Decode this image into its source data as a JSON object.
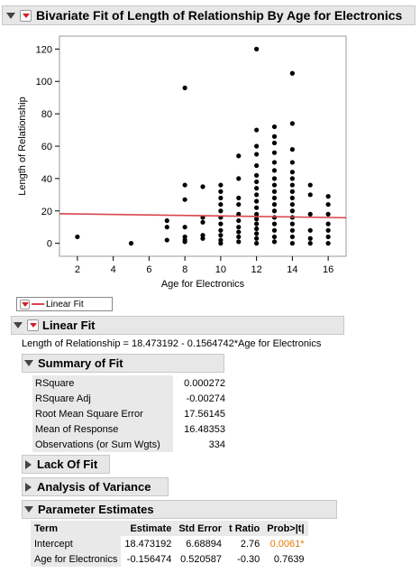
{
  "report": {
    "title": "Bivariate Fit of Length of Relationship By Age for Electronics"
  },
  "chart_data": {
    "type": "scatter",
    "xlabel": "Age for Electronics",
    "ylabel": "Length of Relationship",
    "xlim": [
      1,
      17
    ],
    "ylim": [
      -8,
      128
    ],
    "xticks": [
      2,
      4,
      6,
      8,
      10,
      12,
      14,
      16
    ],
    "yticks": [
      0,
      20,
      40,
      60,
      80,
      100,
      120
    ],
    "fit_line": {
      "intercept": 18.473192,
      "slope": -0.1564742,
      "color": "#d9454f"
    },
    "point_color": "#000000",
    "points": [
      [
        2,
        4
      ],
      [
        5,
        0
      ],
      [
        7,
        14
      ],
      [
        7,
        10
      ],
      [
        7,
        2
      ],
      [
        8,
        96
      ],
      [
        8,
        36
      ],
      [
        8,
        27
      ],
      [
        8,
        10
      ],
      [
        8,
        4
      ],
      [
        8,
        2
      ],
      [
        8,
        1
      ],
      [
        9,
        35
      ],
      [
        9,
        16
      ],
      [
        9,
        13
      ],
      [
        9,
        5
      ],
      [
        9,
        3
      ],
      [
        10,
        36
      ],
      [
        10,
        32
      ],
      [
        10,
        28
      ],
      [
        10,
        24
      ],
      [
        10,
        20
      ],
      [
        10,
        16
      ],
      [
        10,
        12
      ],
      [
        10,
        8
      ],
      [
        10,
        5
      ],
      [
        10,
        2
      ],
      [
        10,
        0
      ],
      [
        11,
        54
      ],
      [
        11,
        40
      ],
      [
        11,
        28
      ],
      [
        11,
        24
      ],
      [
        11,
        18
      ],
      [
        11,
        14
      ],
      [
        11,
        10
      ],
      [
        11,
        7
      ],
      [
        11,
        4
      ],
      [
        11,
        1
      ],
      [
        12,
        120
      ],
      [
        12,
        70
      ],
      [
        12,
        60
      ],
      [
        12,
        55
      ],
      [
        12,
        48
      ],
      [
        12,
        42
      ],
      [
        12,
        38
      ],
      [
        12,
        34
      ],
      [
        12,
        30
      ],
      [
        12,
        26
      ],
      [
        12,
        22
      ],
      [
        12,
        18
      ],
      [
        12,
        15
      ],
      [
        12,
        12
      ],
      [
        12,
        9
      ],
      [
        12,
        6
      ],
      [
        12,
        3
      ],
      [
        12,
        0
      ],
      [
        13,
        72
      ],
      [
        13,
        66
      ],
      [
        13,
        62
      ],
      [
        13,
        56
      ],
      [
        13,
        50
      ],
      [
        13,
        45
      ],
      [
        13,
        40
      ],
      [
        13,
        36
      ],
      [
        13,
        32
      ],
      [
        13,
        28
      ],
      [
        13,
        24
      ],
      [
        13,
        20
      ],
      [
        13,
        16
      ],
      [
        13,
        12
      ],
      [
        13,
        8
      ],
      [
        13,
        4
      ],
      [
        13,
        1
      ],
      [
        14,
        105
      ],
      [
        14,
        74
      ],
      [
        14,
        58
      ],
      [
        14,
        50
      ],
      [
        14,
        44
      ],
      [
        14,
        40
      ],
      [
        14,
        36
      ],
      [
        14,
        32
      ],
      [
        14,
        28
      ],
      [
        14,
        24
      ],
      [
        14,
        20
      ],
      [
        14,
        16
      ],
      [
        14,
        12
      ],
      [
        14,
        8
      ],
      [
        14,
        4
      ],
      [
        14,
        0
      ],
      [
        15,
        36
      ],
      [
        15,
        30
      ],
      [
        15,
        18
      ],
      [
        15,
        8
      ],
      [
        15,
        3
      ],
      [
        15,
        0
      ],
      [
        16,
        29
      ],
      [
        16,
        24
      ],
      [
        16,
        18
      ],
      [
        16,
        12
      ],
      [
        16,
        8
      ],
      [
        16,
        4
      ],
      [
        16,
        0
      ]
    ]
  },
  "legend": {
    "label": "Linear Fit"
  },
  "linear_fit": {
    "title": "Linear Fit",
    "equation": "Length of Relationship = 18.473192 - 0.1564742*Age for Electronics"
  },
  "summary_of_fit": {
    "title": "Summary of Fit",
    "rows": [
      {
        "label": "RSquare",
        "value": "0.000272"
      },
      {
        "label": "RSquare Adj",
        "value": "-0.00274"
      },
      {
        "label": "Root Mean Square Error",
        "value": "17.56145"
      },
      {
        "label": "Mean of Response",
        "value": "16.48353"
      },
      {
        "label": "Observations (or Sum Wgts)",
        "value": "334"
      }
    ]
  },
  "lack_of_fit": {
    "title": "Lack Of Fit"
  },
  "analysis_of_variance": {
    "title": "Analysis of Variance"
  },
  "parameter_estimates": {
    "title": "Parameter Estimates",
    "headers": [
      "Term",
      "Estimate",
      "Std Error",
      "t Ratio",
      "Prob>|t|"
    ],
    "rows": [
      {
        "term": "Intercept",
        "estimate": "18.473192",
        "std_error": "6.68894",
        "t_ratio": "2.76",
        "prob": "0.0061*",
        "significant": true
      },
      {
        "term": "Age for Electronics",
        "estimate": "-0.156474",
        "std_error": "0.520587",
        "t_ratio": "-0.30",
        "prob": "0.7639",
        "significant": false
      }
    ],
    "significant_color": "#e07a10"
  }
}
